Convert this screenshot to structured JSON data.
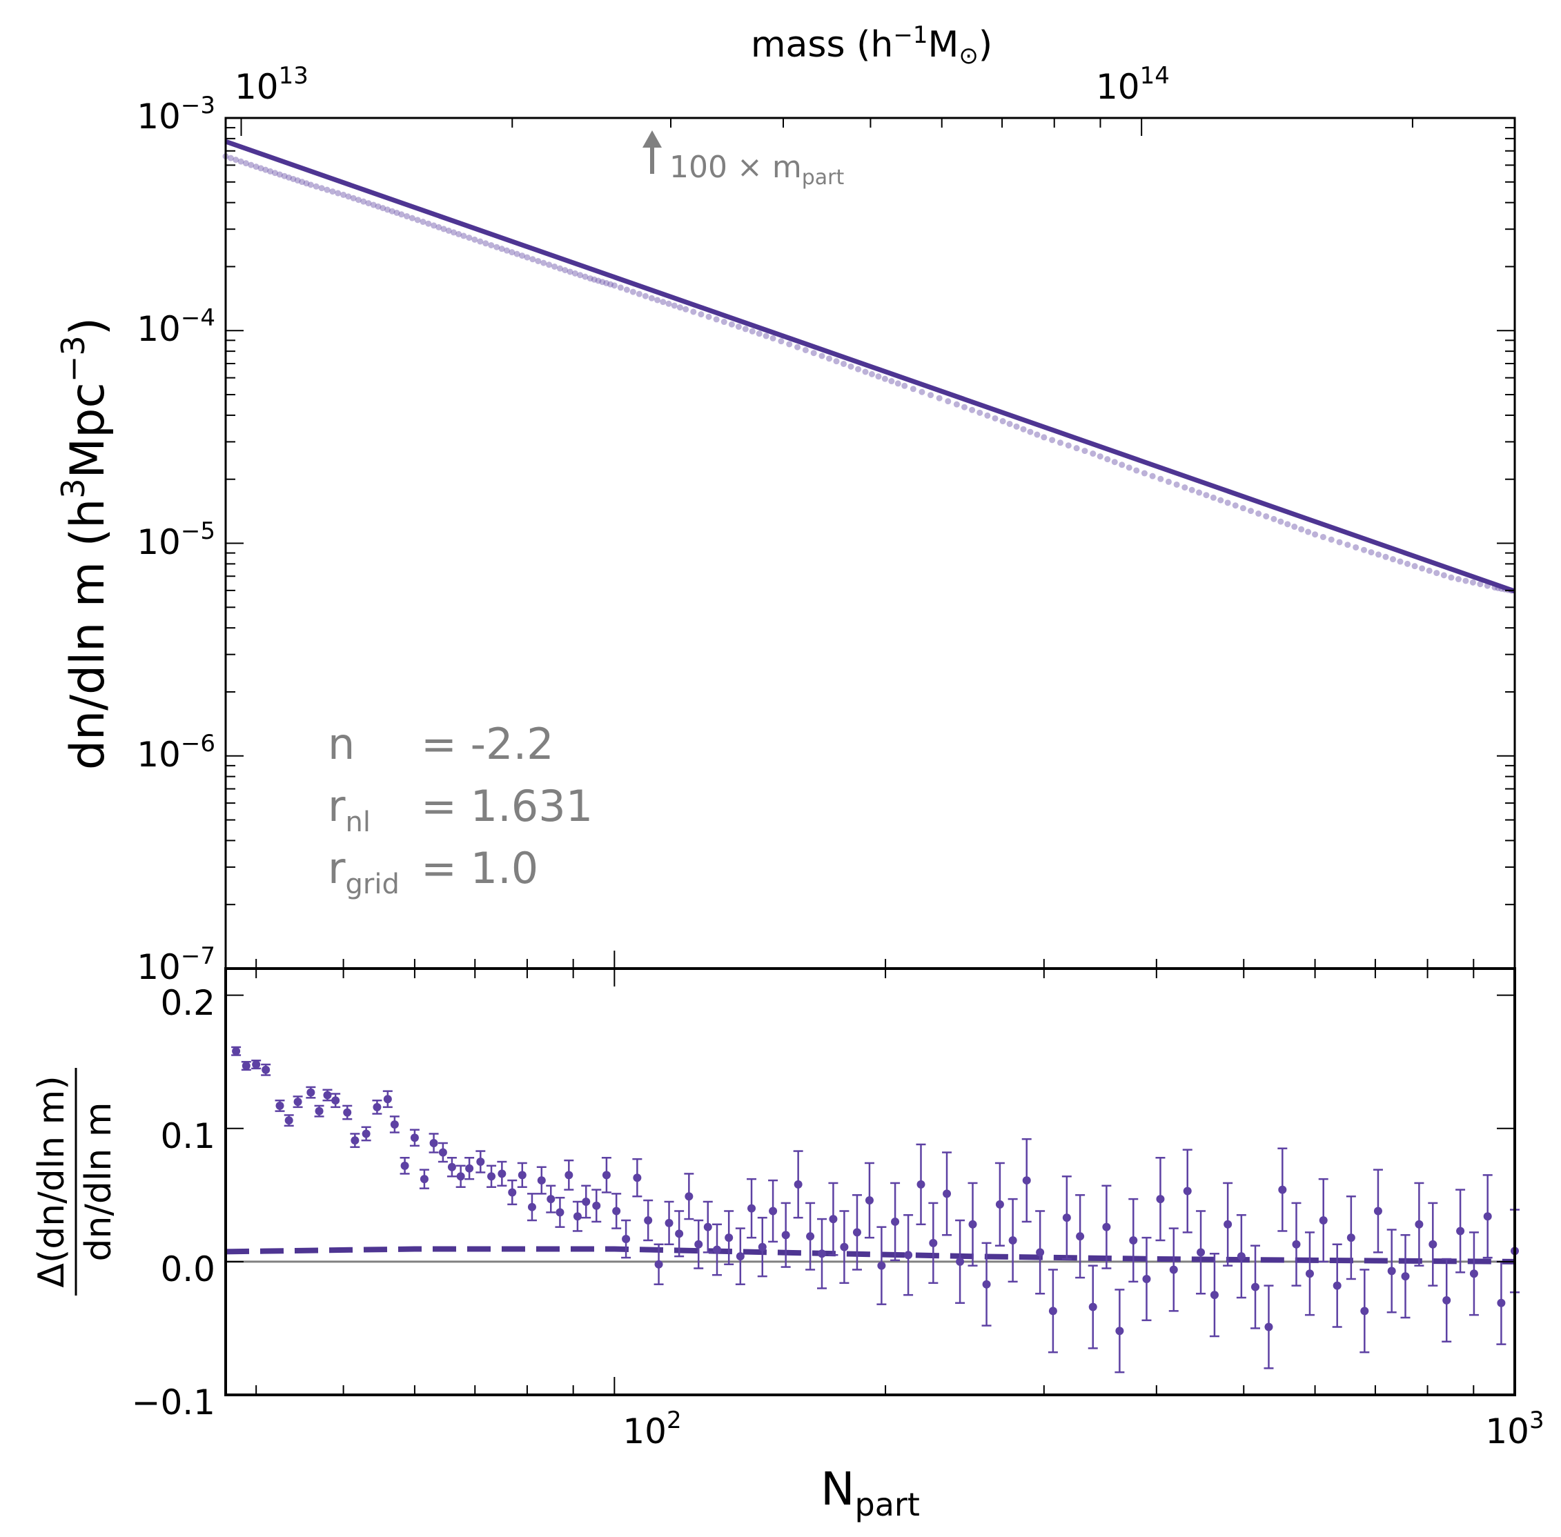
{
  "chart_data": [
    {
      "type": "line",
      "panel": "upper",
      "xlabel": "",
      "ylabel": "dn/dln m (h³Mpc⁻³)",
      "ylabel_base": "dn/dln m (h",
      "ylabel_sup1": "3",
      "ylabel_mid": "Mpc",
      "ylabel_sup2": "−3",
      "ylabel_end": ")",
      "x_scale": "log",
      "y_scale": "log",
      "xlim": [
        37,
        1000
      ],
      "ylim": [
        1e-07,
        0.001
      ],
      "y_ticks": [
        {
          "value": 0.001,
          "base": "10",
          "exp": "−3"
        },
        {
          "value": 0.0001,
          "base": "10",
          "exp": "−4"
        },
        {
          "value": 1e-05,
          "base": "10",
          "exp": "−5"
        },
        {
          "value": 1e-06,
          "base": "10",
          "exp": "−6"
        },
        {
          "value": 1e-07,
          "base": "10",
          "exp": "−7"
        }
      ],
      "top_axis": {
        "label_base": "mass (h",
        "label_sup": "−1",
        "label_mid": "M",
        "label_sub": "⊙",
        "label_end": ")",
        "ticks": [
          {
            "npart": 38.5,
            "base": "10",
            "exp": "13"
          },
          {
            "npart": 385,
            "base": "10",
            "exp": "14"
          }
        ]
      },
      "annotation": {
        "arrow": "↑",
        "text_main": "100 × m",
        "text_sub": "part",
        "x": 100
      },
      "params": [
        {
          "symbol": "n",
          "sub": "",
          "value": "= -2.2"
        },
        {
          "symbol": "r",
          "sub": "nl",
          "value": "= 1.631"
        },
        {
          "symbol": "r",
          "sub": "grid",
          "value": "= 1.0"
        }
      ],
      "series": [
        {
          "role": "fit",
          "style": "solid",
          "color": "#4e3592",
          "x": [
            37,
            1000
          ],
          "y": [
            0.000775,
            5.95e-06
          ]
        },
        {
          "role": "simulation",
          "style": "points",
          "color": "#6a51a9",
          "x": [
            37,
            40,
            43,
            46,
            50,
            54,
            58,
            63,
            68,
            74,
            80,
            87,
            94,
            100,
            110,
            120,
            135,
            150,
            170,
            190,
            210,
            240,
            270,
            300,
            340,
            380,
            430,
            480,
            540,
            600,
            680,
            760,
            850,
            950,
            1000
          ],
          "y": [
            0.00066,
            0.00059,
            0.000533,
            0.000485,
            0.000435,
            0.00039,
            0.000352,
            0.000312,
            0.000279,
            0.000247,
            0.000221,
            0.000196,
            0.000176,
            0.000163,
            0.000142,
            0.000126,
            0.000107,
            9.2e-05,
            7.6e-05,
            6.4e-05,
            5.5e-05,
            4.5e-05,
            3.75e-05,
            3.15e-05,
            2.64e-05,
            2.2e-05,
            1.83e-05,
            1.55e-05,
            1.3e-05,
            1.1e-05,
            9.3e-06,
            8e-06,
            6.9e-06,
            6.2e-06,
            5.95e-06
          ]
        }
      ]
    },
    {
      "type": "scatter",
      "panel": "lower",
      "xlabel": "N",
      "xlabel_sub": "part",
      "ylabel_num": "Δ(dn/dln m)",
      "ylabel_den": "dn/dln m",
      "x_scale": "log",
      "y_scale": "linear",
      "xlim": [
        37,
        1000
      ],
      "ylim": [
        -0.1,
        0.22
      ],
      "x_ticks": [
        {
          "value": 100,
          "base": "10",
          "exp": "2"
        },
        {
          "value": 1000,
          "base": "10",
          "exp": "3"
        }
      ],
      "y_ticks": [
        {
          "value": 0.2,
          "label": "0.2"
        },
        {
          "value": 0.1,
          "label": "0.1"
        },
        {
          "value": 0.0,
          "label": "0.0"
        },
        {
          "value": -0.1,
          "label": "−0.1"
        }
      ],
      "reference_line": {
        "y": 0.0,
        "color": "#808080"
      },
      "series": [
        {
          "role": "model",
          "style": "dashed",
          "color": "#4e3592",
          "x": [
            37,
            60,
            100,
            150,
            250,
            400,
            600,
            1000
          ],
          "y": [
            0.0075,
            0.0095,
            0.0095,
            0.007,
            0.004,
            0.002,
            0.001,
            0.0
          ]
        },
        {
          "role": "residuals",
          "style": "points_with_errorbars",
          "color": "#5d41a3",
          "x": [
            38.0,
            39.0,
            40.0,
            41.0,
            42.5,
            43.5,
            44.5,
            46.0,
            47.0,
            48.0,
            49.0,
            50.5,
            51.5,
            53.0,
            54.5,
            56.0,
            57.0,
            58.5,
            60.0,
            61.5,
            63.0,
            64.5,
            66.0,
            67.5,
            69.0,
            71.0,
            73.0,
            75.0,
            77.0,
            79.0,
            81.0,
            83.0,
            85.0,
            87.0,
            89.0,
            91.0,
            93.0,
            95.5,
            98.0,
            100.5,
            103.0,
            106.0,
            109.0,
            112.0,
            115.0,
            118.0,
            121.0,
            124.0,
            127.0,
            130.0,
            134.0,
            138.0,
            142.0,
            146.0,
            150.0,
            155.0,
            160.0,
            165.0,
            170.0,
            175.0,
            180.0,
            186.0,
            192.0,
            198.0,
            205.0,
            212.0,
            219.0,
            226.0,
            234.0,
            242.0,
            250.0,
            259.0,
            268.0,
            277.0,
            287.0,
            297.0,
            307.0,
            318.0,
            329.0,
            340.0,
            352.0,
            364.0,
            377.0,
            390.0,
            404.0,
            418.0,
            433.0,
            448.0,
            464.0,
            480.0,
            497.0,
            515.0,
            533.0,
            552.0,
            572.0,
            592.0,
            613.0,
            635.0,
            658.0,
            681.0,
            705.0,
            730.0,
            756.0,
            783.0,
            811.0,
            840.0,
            870.0,
            901.0,
            933.0,
            966.0,
            1000.0
          ],
          "y": [
            0.158,
            0.147,
            0.148,
            0.144,
            0.117,
            0.106,
            0.12,
            0.127,
            0.113,
            0.125,
            0.121,
            0.112,
            0.091,
            0.096,
            0.116,
            0.122,
            0.103,
            0.072,
            0.093,
            0.062,
            0.089,
            0.082,
            0.071,
            0.064,
            0.07,
            0.075,
            0.064,
            0.066,
            0.052,
            0.065,
            0.041,
            0.061,
            0.047,
            0.037,
            0.065,
            0.034,
            0.045,
            0.042,
            0.065,
            0.038,
            0.017,
            0.063,
            0.031,
            -0.002,
            0.029,
            0.021,
            0.049,
            0.013,
            0.026,
            0.009,
            0.018,
            0.004,
            0.04,
            0.011,
            0.038,
            0.02,
            0.058,
            0.019,
            0.006,
            0.032,
            0.011,
            0.022,
            0.046,
            -0.003,
            0.03,
            0.005,
            0.058,
            0.014,
            0.051,
            0.0,
            0.028,
            -0.017,
            0.043,
            0.016,
            0.061,
            0.007,
            -0.037,
            0.033,
            0.019,
            -0.034,
            0.026,
            -0.052,
            0.016,
            -0.013,
            0.047,
            -0.006,
            0.053,
            0.007,
            -0.025,
            0.028,
            0.004,
            -0.019,
            -0.049,
            0.054,
            0.013,
            -0.009,
            0.031,
            -0.018,
            0.018,
            -0.037,
            0.038,
            -0.007,
            -0.011,
            0.028,
            0.013,
            -0.029,
            0.023,
            -0.009,
            0.034,
            -0.031,
            0.008
          ],
          "yerr": [
            0.003,
            0.003,
            0.003,
            0.004,
            0.004,
            0.004,
            0.004,
            0.004,
            0.004,
            0.004,
            0.005,
            0.005,
            0.005,
            0.005,
            0.005,
            0.006,
            0.006,
            0.006,
            0.006,
            0.007,
            0.007,
            0.007,
            0.007,
            0.008,
            0.008,
            0.008,
            0.008,
            0.009,
            0.009,
            0.009,
            0.01,
            0.01,
            0.01,
            0.011,
            0.011,
            0.011,
            0.012,
            0.012,
            0.013,
            0.013,
            0.014,
            0.014,
            0.015,
            0.015,
            0.016,
            0.017,
            0.017,
            0.018,
            0.019,
            0.019,
            0.02,
            0.021,
            0.022,
            0.022,
            0.023,
            0.024,
            0.025,
            0.025,
            0.026,
            0.027,
            0.027,
            0.028,
            0.028,
            0.029,
            0.029,
            0.03,
            0.03,
            0.03,
            0.031,
            0.031,
            0.031,
            0.031,
            0.031,
            0.031,
            0.031,
            0.031,
            0.031,
            0.031,
            0.031,
            0.031,
            0.031,
            0.031,
            0.031,
            0.031,
            0.031,
            0.031,
            0.031,
            0.031,
            0.031,
            0.031,
            0.031,
            0.031,
            0.031,
            0.031,
            0.031,
            0.031,
            0.031,
            0.031,
            0.031,
            0.031,
            0.031,
            0.031,
            0.031,
            0.031,
            0.031,
            0.031,
            0.031,
            0.031,
            0.031,
            0.031,
            0.031
          ]
        }
      ]
    }
  ]
}
